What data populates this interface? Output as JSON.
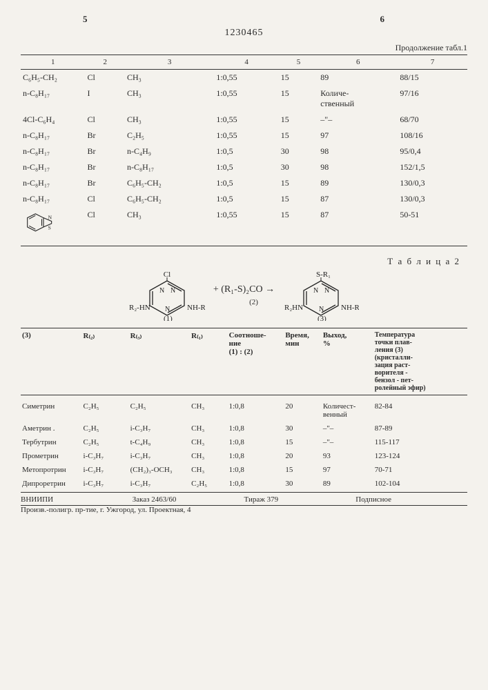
{
  "page": {
    "left_num": "5",
    "right_num": "6",
    "patent": "1230465"
  },
  "table1": {
    "continuation": "Продолжение табл.1",
    "headers": [
      "1",
      "2",
      "3",
      "4",
      "5",
      "6",
      "7"
    ],
    "rows": [
      {
        "c1": "C₆H₅-CH₂",
        "c2": "Cl",
        "c3": "CH₃",
        "c4": "1:0,55",
        "c5": "15",
        "c6": "89",
        "c7": "88/15"
      },
      {
        "c1": "n-C₈H₁₇",
        "c2": "I",
        "c3": "CH₃",
        "c4": "1:0,55",
        "c5": "15",
        "c6": "Количе-\nственный",
        "c7": "97/16"
      },
      {
        "c1": "4Cl-C₆H₄",
        "c2": "Cl",
        "c3": "CH₃",
        "c4": "1:0,55",
        "c5": "15",
        "c6": "–\"–",
        "c7": "68/70"
      },
      {
        "c1": "n-C₈H₁₇",
        "c2": "Br",
        "c3": "C₂H₅",
        "c4": "1:0,55",
        "c5": "15",
        "c6": "97",
        "c7": "108/16"
      },
      {
        "c1": "n-C₈H₁₇",
        "c2": "Br",
        "c3": "n-C₄H₉",
        "c4": "1:0,5",
        "c5": "30",
        "c6": "98",
        "c7": "95/0,4"
      },
      {
        "c1": "n-C₈H₁₇",
        "c2": "Br",
        "c3": "n-C₈H₁₇",
        "c4": "1:0,5",
        "c5": "30",
        "c6": "98",
        "c7": "152/1,5"
      },
      {
        "c1": "n-C₈H₁₇",
        "c2": "Br",
        "c3": "C₆H₅-CH₂",
        "c4": "1:0,5",
        "c5": "15",
        "c6": "89",
        "c7": "130/0,3"
      },
      {
        "c1": "n-C₈H₁₇",
        "c2": "Cl",
        "c3": "C₆H₅-CH₂",
        "c4": "1:0,5",
        "c5": "15",
        "c6": "87",
        "c7": "130/0,3"
      },
      {
        "c1": "__BENZOTHIAZOLE__",
        "c2": "Cl",
        "c3": "CH₃",
        "c4": "1:0,55",
        "c5": "15",
        "c6": "87",
        "c7": "50-51"
      }
    ]
  },
  "table2": {
    "label": "Т а б л и ц а  2",
    "scheme_reagent": "+ (R₁-S)₂CO →",
    "scheme_nums": {
      "a": "(1)",
      "b": "(2)",
      "c": "(3)"
    },
    "headers": {
      "h1": "(3)",
      "h2": "R₍₂₎",
      "h3": "R₍₃₎",
      "h4": "R₍₁₎",
      "h5": "Соотноше-\nние\n(1) : (2)",
      "h6": "Время,\nмин",
      "h7": "Выход,\n%",
      "h8": "Температура\nточки плав-\nления (3)\n(кристалли-\nзация раст-\nворителя -\nбензол - пет-\nролейный эфир)"
    },
    "rows": [
      {
        "c1": "Симетрин",
        "c2": "C₂H₅",
        "c3": "C₂H₅",
        "c4": "CH₃",
        "c5": "1:0,8",
        "c6": "20",
        "c7": "Количест-\nвенный",
        "c8": "82-84"
      },
      {
        "c1": "Аметрин .",
        "c2": "C₂H₅",
        "c3": "i-C₃H₇",
        "c4": "CH₃",
        "c5": "1:0,8",
        "c6": "30",
        "c7": "–\"–",
        "c8": "87-89"
      },
      {
        "c1": "Тербутрин",
        "c2": "C₂H₅",
        "c3": "t-C₄H₉",
        "c4": "CH₃",
        "c5": "1:0,8",
        "c6": "15",
        "c7": "–\"–",
        "c8": "115-117"
      },
      {
        "c1": "Прометрин",
        "c2": "i-C₃H₇",
        "c3": "i-C₃H₇",
        "c4": "CH₃",
        "c5": "1:0,8",
        "c6": "20",
        "c7": "93",
        "c8": "123-124"
      },
      {
        "c1": "Метопротрин",
        "c2": "i-C₃H₇",
        "c3": "(CH₂)₃-OCH₃",
        "c4": "CH₃",
        "c5": "1:0,8",
        "c6": "15",
        "c7": "97",
        "c8": "70-71"
      },
      {
        "c1": "Дипроретрин",
        "c2": "i-C₃H₇",
        "c3": "i-C₃H₇",
        "c4": "C₂H₅",
        "c5": "1:0,8",
        "c6": "30",
        "c7": "89",
        "c8": "102-104"
      }
    ]
  },
  "footer": {
    "l1a": "ВНИИПИ",
    "l1b": "Заказ 2463/60",
    "l1c": "Тираж 379",
    "l1d": "Подписное",
    "l2": "Произв.-полигр. пр-тие, г. Ужгород, ул. Проектная, 4"
  }
}
